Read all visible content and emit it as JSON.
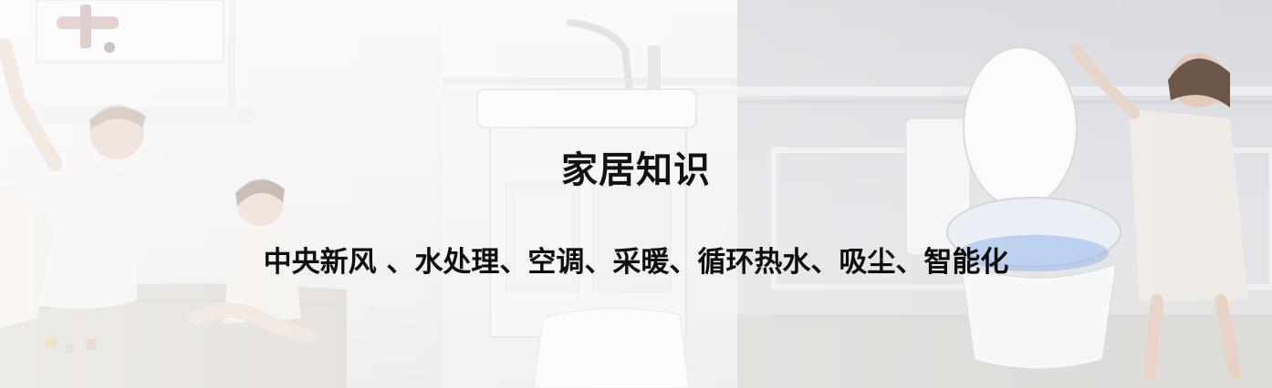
{
  "banner": {
    "title": "家居知识",
    "subtitle": "中央新风 、水处理、空调、采暖、循环热水、吸尘、智能化"
  }
}
